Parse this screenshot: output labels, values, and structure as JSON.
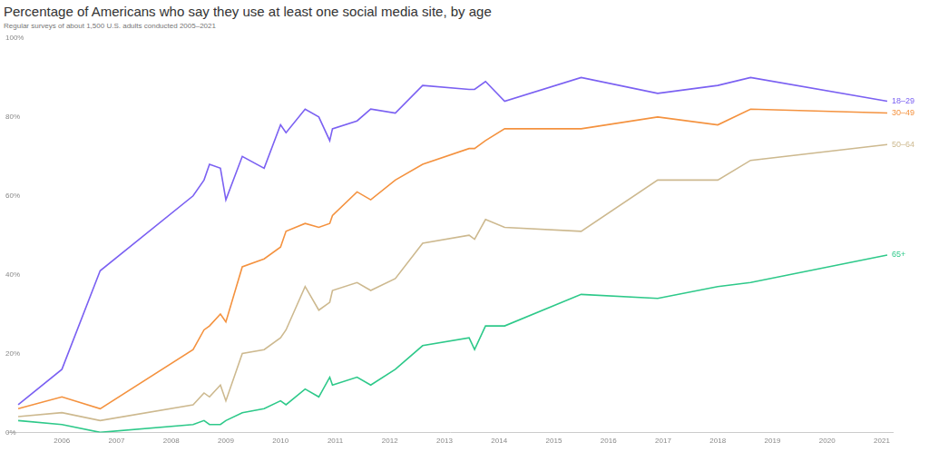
{
  "chart_data": {
    "type": "line",
    "title": "Percentage of Americans who say they use at least one social media site, by age",
    "subtitle": "Regular surveys of about 1,500 U.S. adults conducted 2005–2021",
    "x": [
      2005.2,
      2006.0,
      2006.7,
      2008.4,
      2008.6,
      2008.7,
      2008.9,
      2009.0,
      2009.3,
      2009.7,
      2010.0,
      2010.1,
      2010.45,
      2010.7,
      2010.9,
      2010.95,
      2011.4,
      2011.65,
      2012.1,
      2012.6,
      2013.45,
      2013.55,
      2013.75,
      2014.1,
      2015.5,
      2016.9,
      2018.0,
      2018.6,
      2021.1
    ],
    "series": [
      {
        "name": "18–29",
        "color": "#7b61f2",
        "values": [
          7,
          16,
          41,
          60,
          64,
          68,
          67,
          59,
          70,
          67,
          78,
          76,
          82,
          80,
          74,
          77,
          79,
          82,
          81,
          88,
          87,
          87,
          89,
          84,
          90,
          86,
          88,
          90,
          84
        ]
      },
      {
        "name": "30–49",
        "color": "#f4923f",
        "values": [
          6,
          9,
          6,
          21,
          26,
          27,
          30,
          28,
          42,
          44,
          47,
          51,
          53,
          52,
          53,
          55,
          61,
          59,
          64,
          68,
          72,
          72,
          74,
          77,
          77,
          80,
          78,
          82,
          81
        ]
      },
      {
        "name": "50–64",
        "color": "#cdb98f",
        "values": [
          4,
          5,
          3,
          7,
          10,
          9,
          12,
          8,
          20,
          21,
          24,
          26,
          37,
          31,
          33,
          36,
          38,
          36,
          39,
          48,
          50,
          49,
          54,
          52,
          51,
          64,
          64,
          69,
          73
        ]
      },
      {
        "name": "65+",
        "color": "#2ec98a",
        "values": [
          3,
          2,
          0,
          2,
          3,
          2,
          2,
          3,
          5,
          6,
          8,
          7,
          11,
          9,
          14,
          12,
          14,
          12,
          16,
          22,
          24,
          21,
          27,
          27,
          35,
          34,
          37,
          38,
          45
        ]
      }
    ],
    "xlim": [
      2005,
      2021.2
    ],
    "xticks": [
      2006,
      2007,
      2008,
      2009,
      2010,
      2011,
      2012,
      2013,
      2014,
      2015,
      2016,
      2017,
      2018,
      2019,
      2020,
      2021
    ],
    "ylim": [
      0,
      100
    ],
    "yticks": [
      {
        "value": 0,
        "label": "0%"
      },
      {
        "value": 20,
        "label": "20%"
      },
      {
        "value": 40,
        "label": "40%"
      },
      {
        "value": 60,
        "label": "60%"
      },
      {
        "value": 80,
        "label": "80%"
      },
      {
        "value": 100,
        "label": "100%"
      }
    ],
    "grid": false
  }
}
